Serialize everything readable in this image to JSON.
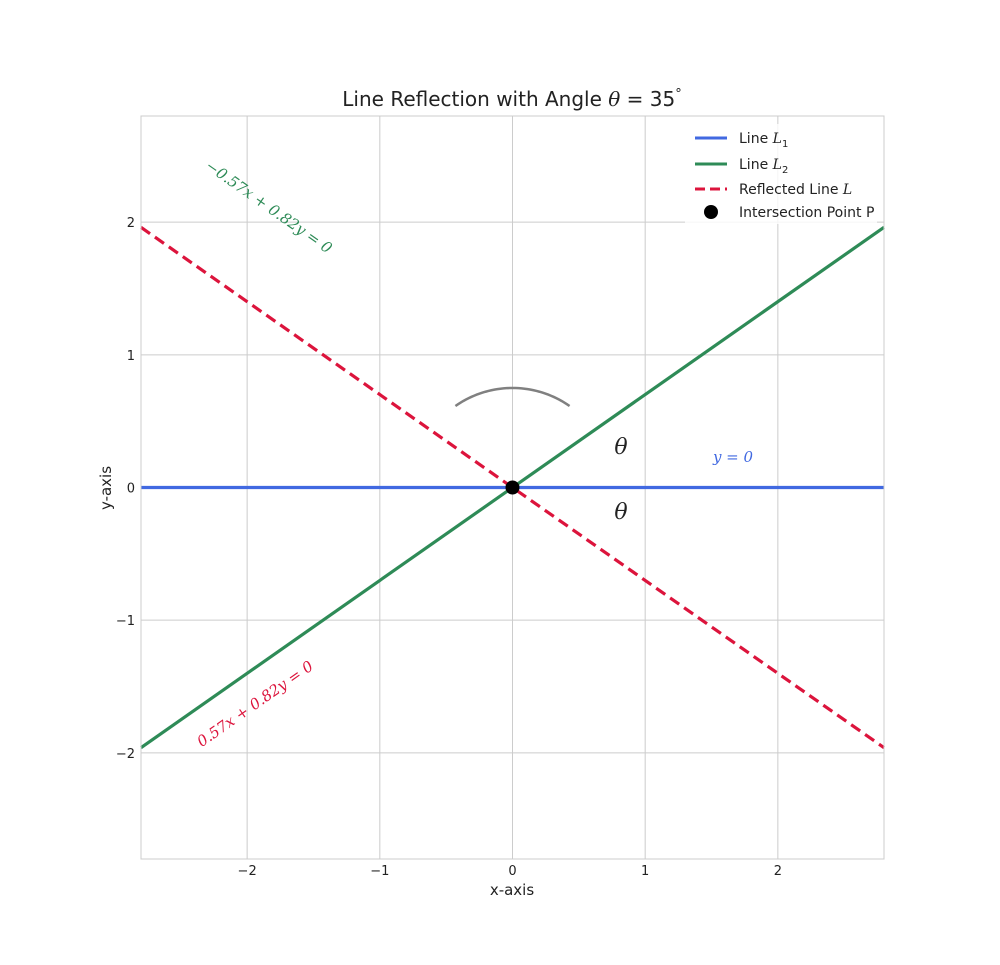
{
  "chart_data": {
    "type": "line",
    "title": "Line Reflection with Angle θ = 35°",
    "title_parts": {
      "prefix": "Line Reflection with Angle ",
      "symbol": "θ",
      "eq": " = 35",
      "deg": "°"
    },
    "xlabel": "x-axis",
    "ylabel": "y-axis",
    "xlim": [
      -2.8,
      2.8
    ],
    "ylim": [
      -2.8,
      2.8
    ],
    "x_ticks": [
      -2,
      -1,
      0,
      1,
      2
    ],
    "y_ticks": [
      -2,
      -1,
      0,
      1,
      2
    ],
    "grid": true,
    "legend_position": "top-right",
    "theta_deg": 35,
    "series": [
      {
        "name": "Line L1",
        "label_main": "Line ",
        "label_sym": "L",
        "label_sub": "1",
        "x": [
          -2.8,
          2.8
        ],
        "y": [
          0,
          0
        ],
        "color": "#4169E1",
        "style": "solid"
      },
      {
        "name": "Line L2",
        "label_main": "Line ",
        "label_sym": "L",
        "label_sub": "2",
        "x": [
          -2.8,
          2.8
        ],
        "y": [
          -1.961,
          1.961
        ],
        "color": "#2E8B57",
        "style": "solid"
      },
      {
        "name": "Reflected Line L",
        "label_main": "Reflected Line ",
        "label_sym": "L",
        "label_sub": "",
        "x": [
          -2.8,
          2.8
        ],
        "y": [
          1.961,
          -1.961
        ],
        "color": "#DC143C",
        "style": "dashed"
      }
    ],
    "points": [
      {
        "name": "Intersection Point P",
        "x": 0,
        "y": 0,
        "color": "#000000"
      }
    ],
    "annotations": {
      "l1_equation": "y = 0",
      "l2_equation": "−0.57x + 0.82y = 0",
      "reflected_equation": "0.57x + 0.82y = 0",
      "theta_upper": "θ",
      "theta_lower": "θ"
    },
    "arc": {
      "radius": 0.75,
      "start_deg": 55,
      "end_deg": 125,
      "color": "#808080"
    }
  }
}
